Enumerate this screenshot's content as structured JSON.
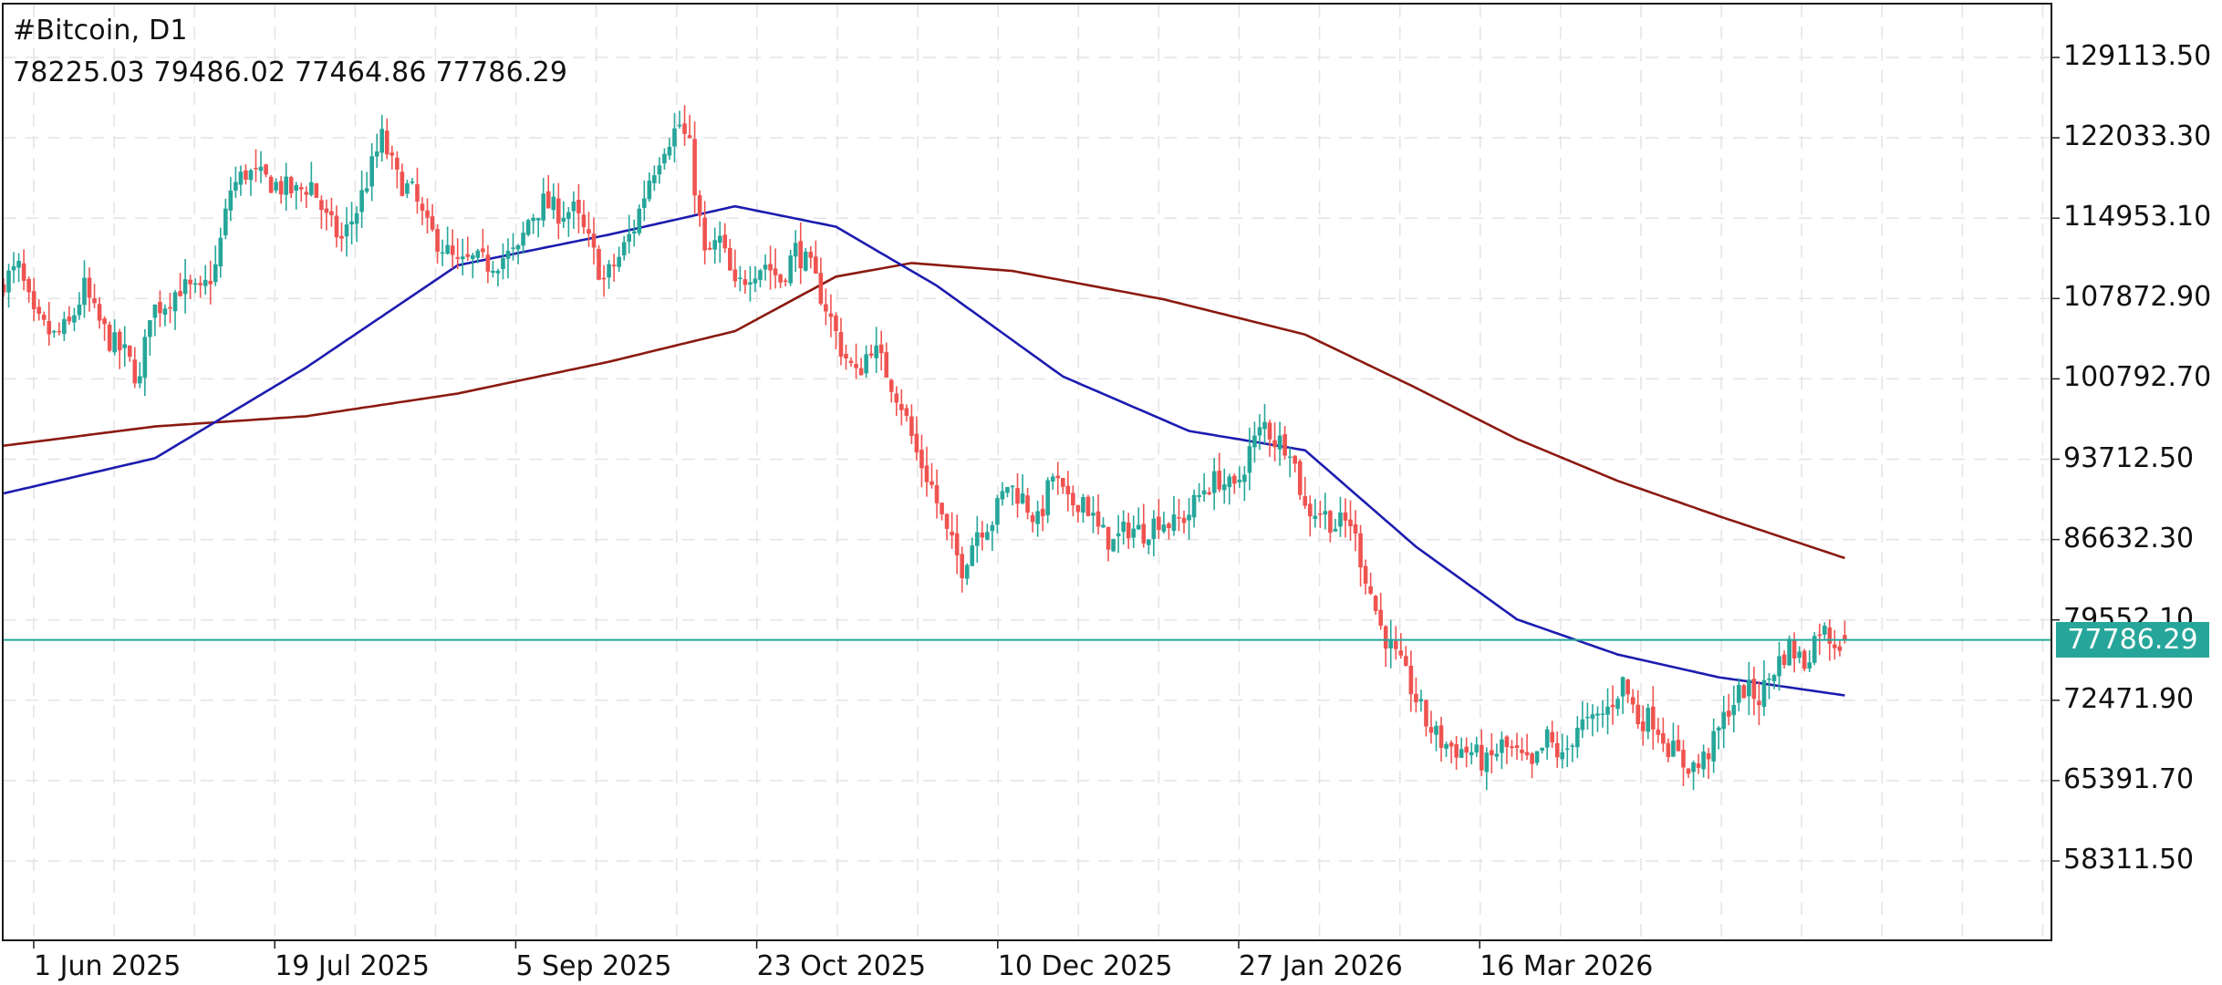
{
  "header": {
    "title": "#Bitcoin, D1",
    "ohlc": "78225.03 79486.02 77464.86 77786.29"
  },
  "price_tag": "77786.29",
  "colors": {
    "bull": "#26a69a",
    "bear": "#ef5350",
    "ma_fast": "#1c1cb0",
    "ma_slow": "#8b1a10",
    "price_line": "#26a69a",
    "grid": "#e4e4e4",
    "axis": "#1a1a1a"
  },
  "chart_data": {
    "type": "candlestick",
    "title": "#Bitcoin, D1",
    "symbol": "#Bitcoin",
    "timeframe": "D1",
    "last_candle": {
      "open": 78225.03,
      "high": 79486.02,
      "low": 77464.86,
      "close": 77786.29
    },
    "current_price": 77786.29,
    "y_ticks": [
      "129113.50",
      "122033.30",
      "114953.10",
      "107872.90",
      "100792.70",
      "93712.50",
      "86632.30",
      "79552.10",
      "72471.90",
      "65391.70",
      "58311.50"
    ],
    "x_ticks": [
      "1 Jun 2025",
      "19 Jul 2025",
      "5 Sep 2025",
      "23 Oct 2025",
      "10 Dec 2025",
      "27 Jan 2026",
      "16 Mar 2026"
    ],
    "ylim": [
      52000,
      132000
    ],
    "grid": true,
    "close_path": [
      [
        0,
        109500
      ],
      [
        3,
        110500
      ],
      [
        6,
        106000
      ],
      [
        10,
        104500
      ],
      [
        13,
        105500
      ],
      [
        16,
        108800
      ],
      [
        18,
        106500
      ],
      [
        21,
        104200
      ],
      [
        24,
        103000
      ],
      [
        27,
        100500
      ],
      [
        29,
        106800
      ],
      [
        32,
        107500
      ],
      [
        35,
        108900
      ],
      [
        39,
        108200
      ],
      [
        42,
        110600
      ],
      [
        45,
        117500
      ],
      [
        48,
        119000
      ],
      [
        52,
        118300
      ],
      [
        55,
        117700
      ],
      [
        58,
        117200
      ],
      [
        61,
        118000
      ],
      [
        64,
        114800
      ],
      [
        67,
        113000
      ],
      [
        70,
        115700
      ],
      [
        73,
        119500
      ],
      [
        75,
        122000
      ],
      [
        78,
        118400
      ],
      [
        81,
        117200
      ],
      [
        84,
        114000
      ],
      [
        87,
        112500
      ],
      [
        90,
        110700
      ],
      [
        93,
        111200
      ],
      [
        96,
        110900
      ],
      [
        99,
        111500
      ],
      [
        102,
        111900
      ],
      [
        104,
        114800
      ],
      [
        107,
        116300
      ],
      [
        110,
        115500
      ],
      [
        113,
        115600
      ],
      [
        116,
        112800
      ],
      [
        119,
        109400
      ],
      [
        122,
        111500
      ],
      [
        125,
        114200
      ],
      [
        128,
        118500
      ],
      [
        131,
        121500
      ],
      [
        134,
        123200
      ],
      [
        136,
        121000
      ],
      [
        139,
        111500
      ],
      [
        142,
        113000
      ],
      [
        145,
        108600
      ],
      [
        148,
        110300
      ],
      [
        151,
        111000
      ],
      [
        154,
        109500
      ],
      [
        157,
        112200
      ],
      [
        160,
        110400
      ],
      [
        163,
        107200
      ],
      [
        166,
        103500
      ],
      [
        169,
        101000
      ],
      [
        172,
        103800
      ],
      [
        175,
        101400
      ],
      [
        178,
        98600
      ],
      [
        181,
        94200
      ],
      [
        184,
        91300
      ],
      [
        187,
        87000
      ],
      [
        190,
        84200
      ],
      [
        193,
        87500
      ],
      [
        196,
        88400
      ],
      [
        199,
        91500
      ],
      [
        202,
        90300
      ],
      [
        205,
        88100
      ],
      [
        208,
        92300
      ],
      [
        211,
        89600
      ],
      [
        214,
        90400
      ],
      [
        217,
        87400
      ],
      [
        220,
        86300
      ],
      [
        223,
        87700
      ],
      [
        226,
        87300
      ],
      [
        229,
        88500
      ],
      [
        232,
        87900
      ],
      [
        235,
        89000
      ],
      [
        238,
        91200
      ],
      [
        241,
        92000
      ],
      [
        244,
        90800
      ],
      [
        247,
        94500
      ],
      [
        250,
        96800
      ],
      [
        252,
        95400
      ],
      [
        255,
        95000
      ],
      [
        258,
        89300
      ],
      [
        261,
        89200
      ],
      [
        264,
        87900
      ],
      [
        267,
        88200
      ],
      [
        270,
        83500
      ],
      [
        273,
        78900
      ],
      [
        276,
        76200
      ],
      [
        279,
        73600
      ],
      [
        282,
        70500
      ],
      [
        285,
        68800
      ],
      [
        288,
        68200
      ],
      [
        291,
        67900
      ],
      [
        294,
        66800
      ],
      [
        297,
        68500
      ],
      [
        300,
        67600
      ],
      [
        303,
        66300
      ],
      [
        306,
        69100
      ],
      [
        309,
        67200
      ],
      [
        312,
        70300
      ],
      [
        315,
        70400
      ],
      [
        318,
        71700
      ],
      [
        321,
        74100
      ],
      [
        324,
        70800
      ],
      [
        327,
        70900
      ],
      [
        330,
        68500
      ],
      [
        333,
        66900
      ],
      [
        336,
        66600
      ],
      [
        339,
        68700
      ],
      [
        342,
        71900
      ],
      [
        345,
        73500
      ],
      [
        348,
        72700
      ],
      [
        351,
        75300
      ],
      [
        354,
        77200
      ],
      [
        357,
        75800
      ],
      [
        360,
        78900
      ],
      [
        363,
        77700
      ],
      [
        365,
        77786.29
      ]
    ],
    "ma_fast_path": [
      [
        0,
        90700
      ],
      [
        30,
        93800
      ],
      [
        60,
        101800
      ],
      [
        90,
        110800
      ],
      [
        120,
        113500
      ],
      [
        145,
        116000
      ],
      [
        165,
        114200
      ],
      [
        185,
        109000
      ],
      [
        210,
        101000
      ],
      [
        235,
        96200
      ],
      [
        258,
        94500
      ],
      [
        280,
        86000
      ],
      [
        300,
        79600
      ],
      [
        320,
        76500
      ],
      [
        340,
        74500
      ],
      [
        365,
        72900
      ]
    ],
    "ma_slow_path": [
      [
        0,
        94900
      ],
      [
        30,
        96600
      ],
      [
        60,
        97500
      ],
      [
        90,
        99500
      ],
      [
        120,
        102300
      ],
      [
        145,
        105000
      ],
      [
        165,
        109800
      ],
      [
        180,
        111000
      ],
      [
        200,
        110300
      ],
      [
        230,
        107800
      ],
      [
        258,
        104700
      ],
      [
        280,
        100000
      ],
      [
        300,
        95500
      ],
      [
        320,
        91800
      ],
      [
        340,
        88700
      ],
      [
        365,
        85000
      ]
    ],
    "n_days": 366,
    "legend": []
  }
}
